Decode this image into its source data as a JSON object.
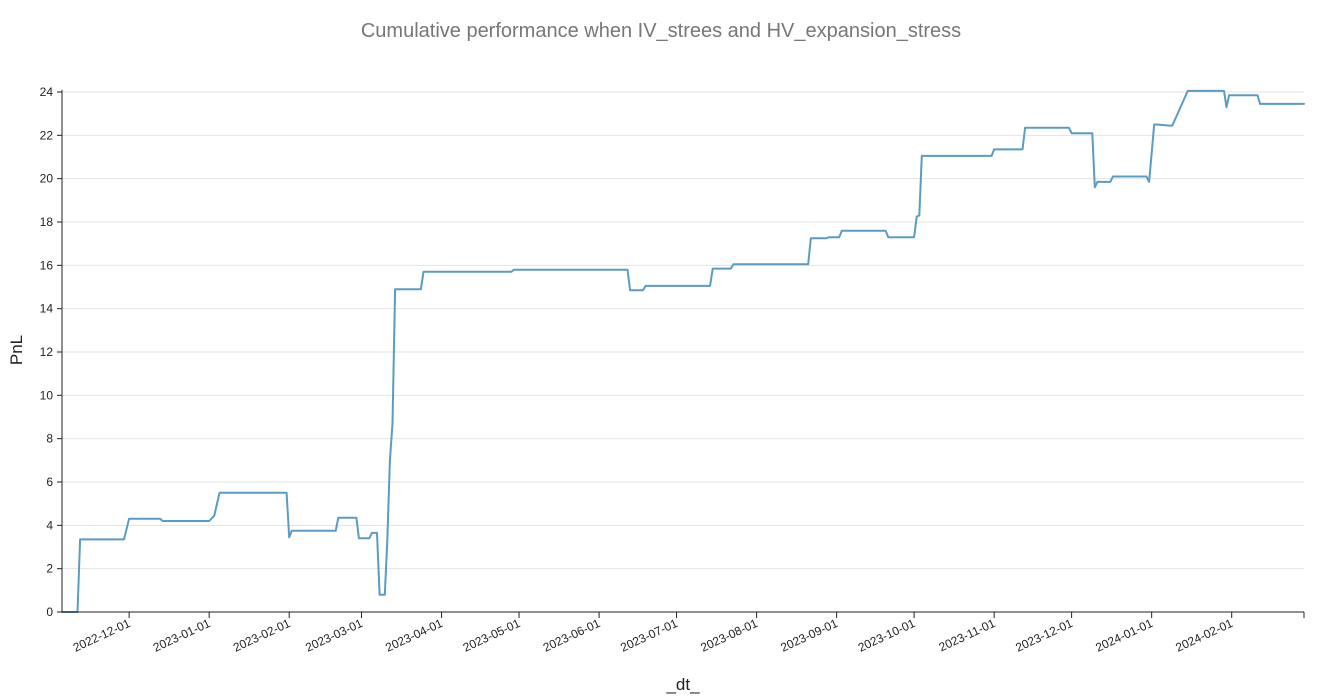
{
  "chart_data": {
    "type": "line",
    "title": "Cumulative performance when IV_strees and HV_expansion_stress",
    "xlabel": "_dt_",
    "ylabel": "PnL",
    "x_range": [
      "2022-11-05",
      "2024-02-29"
    ],
    "ylim": [
      0,
      24
    ],
    "y_ticks": [
      0,
      2,
      4,
      6,
      8,
      10,
      12,
      14,
      16,
      18,
      20,
      22,
      24
    ],
    "x_ticks": [
      "2022-12-01",
      "2023-01-01",
      "2023-02-01",
      "2023-03-01",
      "2023-04-01",
      "2023-05-01",
      "2023-06-01",
      "2023-07-01",
      "2023-08-01",
      "2023-09-01",
      "2023-10-01",
      "2023-11-01",
      "2023-12-01",
      "2024-01-01",
      "2024-02-01"
    ],
    "grid": "horizontal",
    "series": [
      {
        "color": "#5b9bc4",
        "x": [
          "2022-11-05",
          "2022-11-11",
          "2022-11-12",
          "2022-11-29",
          "2022-12-01",
          "2022-12-13",
          "2022-12-14",
          "2023-01-01",
          "2023-01-03",
          "2023-01-05",
          "2023-01-31",
          "2023-02-01",
          "2023-02-02",
          "2023-02-19",
          "2023-02-20",
          "2023-02-27",
          "2023-02-28",
          "2023-03-04",
          "2023-03-05",
          "2023-03-07",
          "2023-03-08",
          "2023-03-10",
          "2023-03-11",
          "2023-03-12",
          "2023-03-13",
          "2023-03-14",
          "2023-03-15",
          "2023-03-24",
          "2023-03-25",
          "2023-04-28",
          "2023-04-29",
          "2023-06-12",
          "2023-06-13",
          "2023-06-18",
          "2023-06-19",
          "2023-07-14",
          "2023-07-15",
          "2023-07-22",
          "2023-07-23",
          "2023-08-21",
          "2023-08-22",
          "2023-08-28",
          "2023-08-29",
          "2023-09-02",
          "2023-09-03",
          "2023-09-20",
          "2023-09-21",
          "2023-10-01",
          "2023-10-02",
          "2023-10-03",
          "2023-10-04",
          "2023-10-31",
          "2023-11-01",
          "2023-11-12",
          "2023-11-13",
          "2023-11-30",
          "2023-12-01",
          "2023-12-09",
          "2023-12-10",
          "2023-12-11",
          "2023-12-16",
          "2023-12-17",
          "2023-12-30",
          "2023-12-31",
          "2024-01-02",
          "2024-01-03",
          "2024-01-08",
          "2024-01-09",
          "2024-01-15",
          "2024-01-16",
          "2024-01-29",
          "2024-01-30",
          "2024-01-31",
          "2024-02-11",
          "2024-02-12",
          "2024-02-29"
        ],
        "y": [
          0,
          0,
          3.35,
          3.35,
          4.3,
          4.3,
          4.2,
          4.2,
          4.45,
          5.5,
          5.5,
          3.45,
          3.75,
          3.75,
          4.35,
          4.35,
          3.4,
          3.4,
          3.65,
          3.65,
          0.8,
          0.8,
          3.3,
          7,
          8.7,
          14.9,
          14.9,
          14.9,
          15.7,
          15.7,
          15.8,
          15.8,
          14.85,
          14.85,
          15.05,
          15.05,
          15.85,
          15.85,
          16.05,
          16.05,
          17.25,
          17.25,
          17.3,
          17.3,
          17.6,
          17.6,
          17.3,
          17.3,
          18.25,
          18.3,
          21.05,
          21.05,
          21.35,
          21.35,
          22.35,
          22.35,
          22.1,
          22.1,
          19.6,
          19.85,
          19.85,
          20.1,
          20.1,
          19.85,
          22.5,
          22.5,
          22.45,
          22.45,
          24.05,
          24.05,
          24.05,
          23.3,
          23.85,
          23.85,
          23.45,
          23.45
        ]
      }
    ]
  }
}
